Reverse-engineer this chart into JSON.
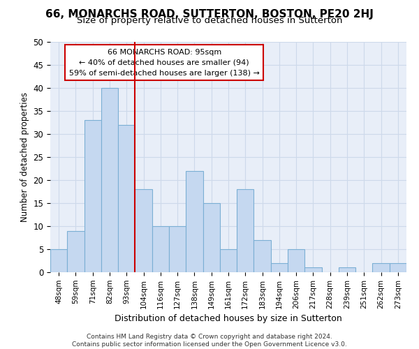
{
  "title": "66, MONARCHS ROAD, SUTTERTON, BOSTON, PE20 2HJ",
  "subtitle": "Size of property relative to detached houses in Sutterton",
  "xlabel": "Distribution of detached houses by size in Sutterton",
  "ylabel": "Number of detached properties",
  "footer1": "Contains HM Land Registry data © Crown copyright and database right 2024.",
  "footer2": "Contains public sector information licensed under the Open Government Licence v3.0.",
  "bin_labels": [
    "48sqm",
    "59sqm",
    "71sqm",
    "82sqm",
    "93sqm",
    "104sqm",
    "116sqm",
    "127sqm",
    "138sqm",
    "149sqm",
    "161sqm",
    "172sqm",
    "183sqm",
    "194sqm",
    "206sqm",
    "217sqm",
    "228sqm",
    "239sqm",
    "251sqm",
    "262sqm",
    "273sqm"
  ],
  "values": [
    5,
    9,
    33,
    40,
    32,
    18,
    10,
    10,
    22,
    15,
    5,
    18,
    7,
    2,
    5,
    1,
    0,
    1,
    0,
    2,
    2
  ],
  "bar_color": "#c5d8f0",
  "bar_edge_color": "#7bafd4",
  "grid_color": "#cdd9ea",
  "background_color": "#e8eef8",
  "marker_color": "#cc0000",
  "annotation_line1": "66 MONARCHS ROAD: 95sqm",
  "annotation_line2": "← 40% of detached houses are smaller (94)",
  "annotation_line3": "59% of semi-detached houses are larger (138) →",
  "annotation_box_color": "#cc0000",
  "ylim": [
    0,
    50
  ],
  "yticks": [
    0,
    5,
    10,
    15,
    20,
    25,
    30,
    35,
    40,
    45,
    50
  ],
  "title_fontsize": 11,
  "subtitle_fontsize": 9.5
}
